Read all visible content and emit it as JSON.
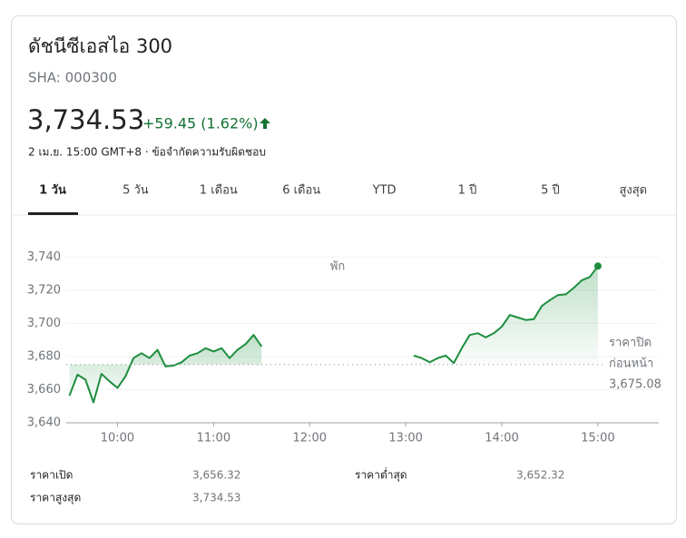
{
  "header": {
    "title": "ดัชนีซีเอสไอ 300",
    "ticker": "SHA: 000300",
    "price": "3,734.53",
    "change": "+59.45 (1.62%)",
    "timestamp": "2 เม.ย. 15:00 GMT+8 · ข้อจำกัดความรับผิดชอบ"
  },
  "tabs": [
    "1 วัน",
    "5 วัน",
    "1 เดือน",
    "6 เดือน",
    "YTD",
    "1 ปี",
    "5 ปี",
    "สูงสุด"
  ],
  "selected_tab": 0,
  "chart_data": {
    "type": "line",
    "color": "#1e8e3e",
    "x": [
      570,
      575,
      580,
      585,
      590,
      595,
      600,
      605,
      610,
      615,
      620,
      625,
      630,
      635,
      640,
      645,
      650,
      655,
      660,
      665,
      670,
      675,
      680,
      685,
      690,
      750,
      785,
      790,
      795,
      800,
      805,
      810,
      815,
      820,
      825,
      830,
      835,
      840,
      845,
      850,
      855,
      860,
      865,
      870,
      875,
      880,
      885,
      890,
      895,
      900
    ],
    "values": [
      3656.32,
      3669,
      3666,
      3652.32,
      3669.5,
      3665,
      3661,
      3668,
      3679,
      3682,
      3679,
      3684,
      3674,
      3674.5,
      3676.5,
      3680.5,
      3682,
      3685,
      3683,
      3685,
      3679,
      3684,
      3687.5,
      3693,
      3686,
      null,
      3680.5,
      3679,
      3676.5,
      3679,
      3680.5,
      3676,
      3685,
      3693,
      3694,
      3691.5,
      3694,
      3698,
      3705,
      3703.5,
      3702,
      3702.5,
      3710.5,
      3714,
      3717,
      3717.5,
      3721.5,
      3726,
      3728,
      3734.53
    ],
    "xlim": [
      568,
      938
    ],
    "xticks": [
      {
        "value": 600,
        "label": "10:00"
      },
      {
        "value": 660,
        "label": "11:00"
      },
      {
        "value": 720,
        "label": "12:00"
      },
      {
        "value": 780,
        "label": "13:00"
      },
      {
        "value": 840,
        "label": "14:00"
      },
      {
        "value": 900,
        "label": "15:00"
      }
    ],
    "ylim": [
      3640,
      3750
    ],
    "yticks": [
      {
        "value": 3640,
        "label": "3,640"
      },
      {
        "value": 3660,
        "label": "3,660"
      },
      {
        "value": 3680,
        "label": "3,680"
      },
      {
        "value": 3700,
        "label": "3,700"
      },
      {
        "value": 3720,
        "label": "3,720"
      },
      {
        "value": 3740,
        "label": "3,740"
      }
    ],
    "grid": true,
    "annotation": "พัก",
    "reference": {
      "value": 3675.08,
      "value_label": "3,675.08",
      "label": [
        "ราคาปิด",
        "ก่อนหน้า"
      ]
    }
  },
  "stats": [
    {
      "label": "ราคาเปิด",
      "value": "3,656.32"
    },
    {
      "label": "ราคาต่ำสุด",
      "value": "3,652.32"
    },
    {
      "label": "ราคาสูงสุด",
      "value": "3,734.53"
    }
  ]
}
